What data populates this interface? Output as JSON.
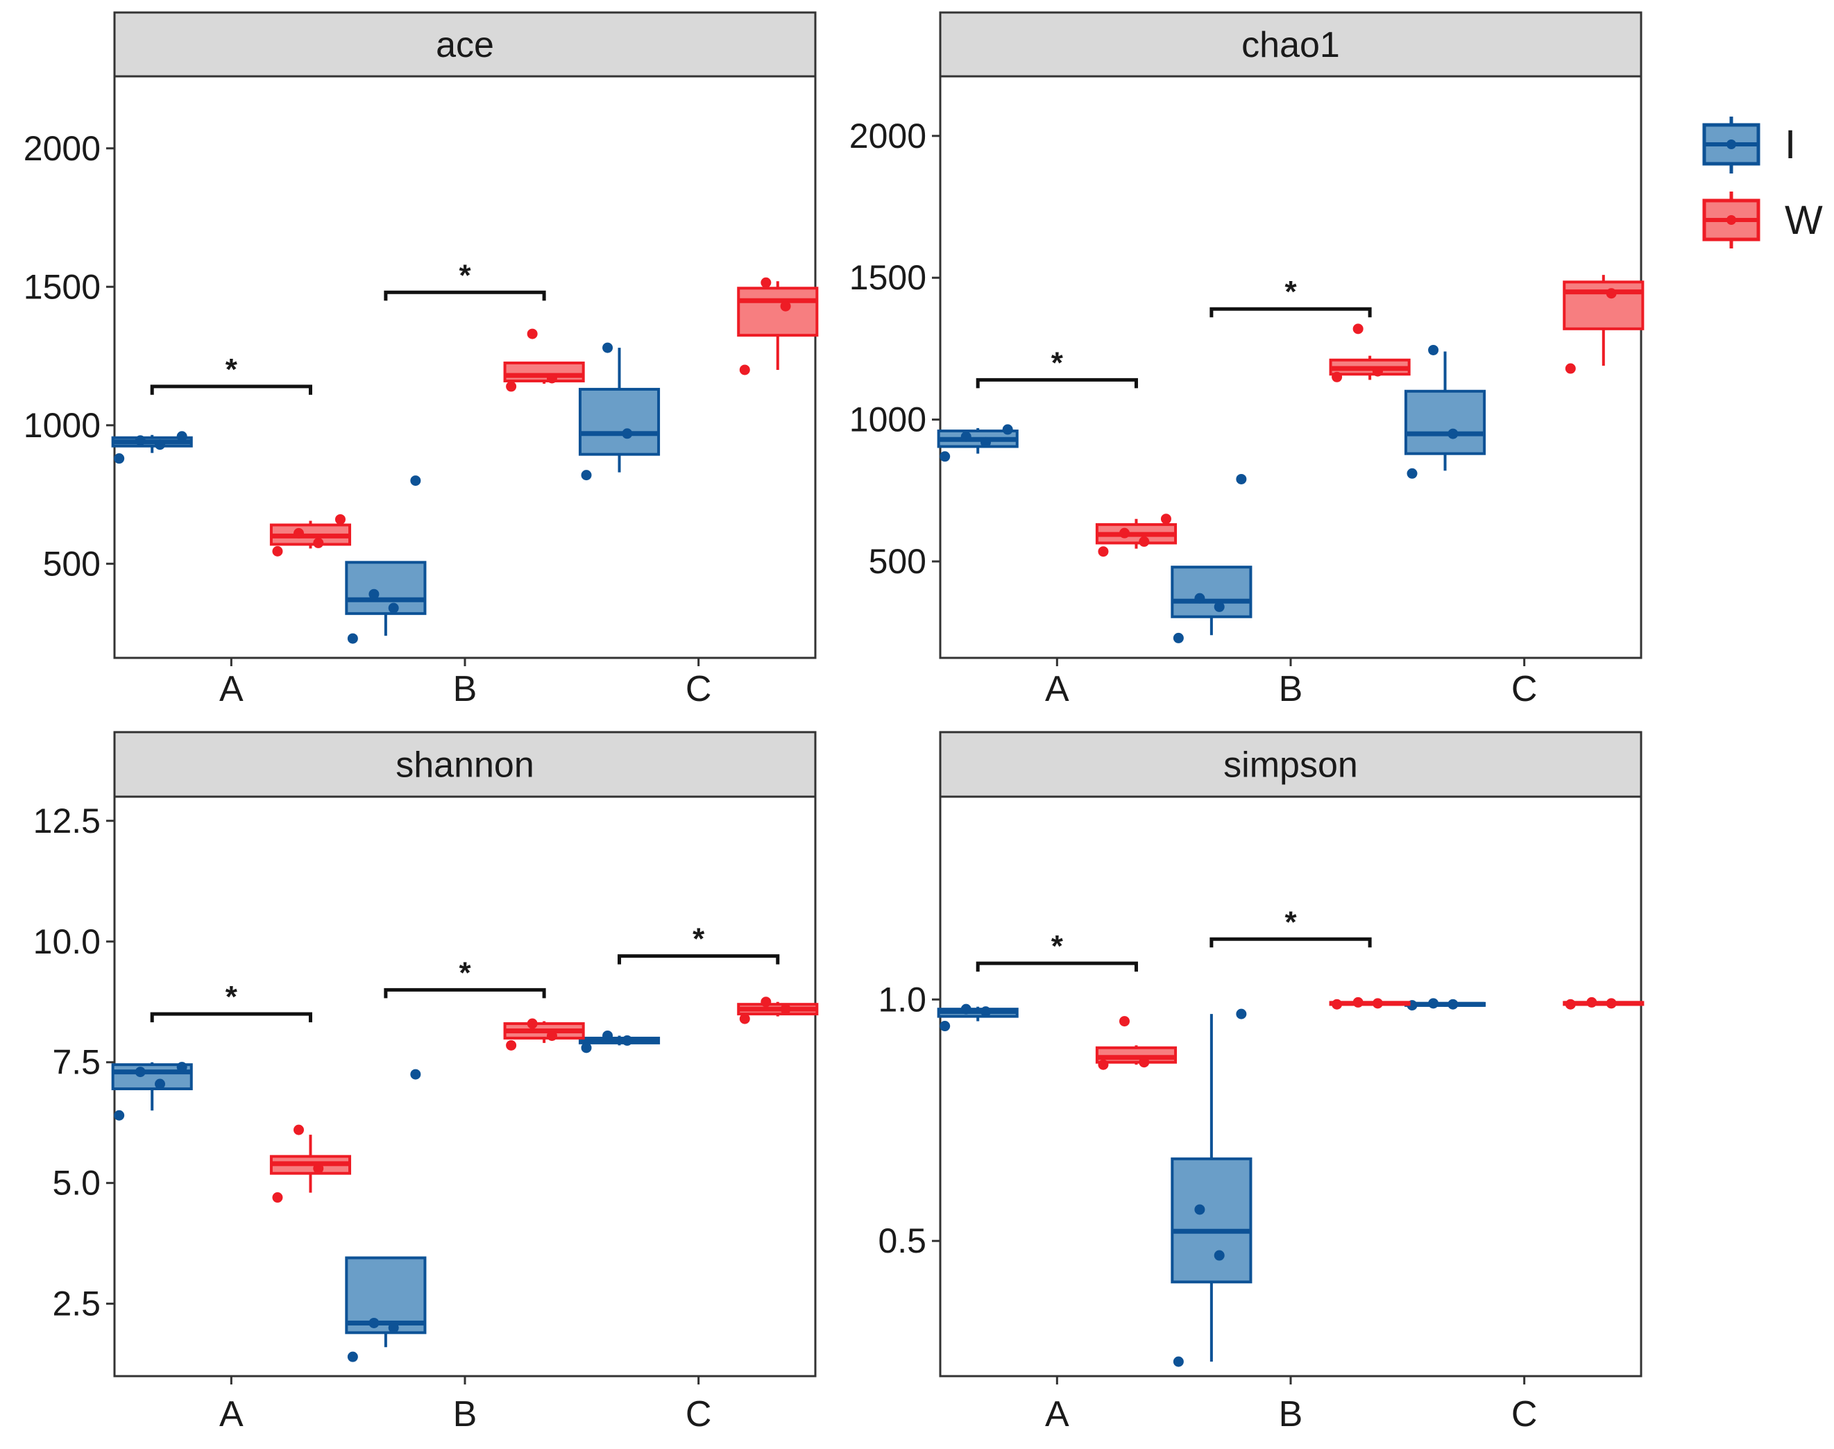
{
  "colors": {
    "I": "#0d5296",
    "W": "#ee1c25",
    "I_fill": "#6a9ec8",
    "W_fill": "#f77e80"
  },
  "legend": {
    "items": [
      {
        "key": "I",
        "label": "I"
      },
      {
        "key": "W",
        "label": "W"
      }
    ]
  },
  "chart_data": [
    {
      "type": "box",
      "title": "ace",
      "categories": [
        "A",
        "B",
        "C"
      ],
      "ylim": [
        160,
        2260
      ],
      "yticks": [
        500,
        1000,
        1500,
        2000
      ],
      "yticklabels": [
        "500",
        "1000",
        "1500",
        "2000"
      ],
      "series": [
        {
          "name": "I",
          "boxes": [
            {
              "min": 900,
              "q1": 925,
              "median": 940,
              "q3": 955,
              "max": 965,
              "points": [
                880,
                930,
                945,
                960
              ]
            },
            {
              "min": 240,
              "q1": 320,
              "median": 370,
              "q3": 505,
              "max": 505,
              "points": [
                230,
                340,
                390,
                800
              ]
            },
            {
              "min": 830,
              "q1": 895,
              "median": 970,
              "q3": 1130,
              "max": 1280,
              "points": [
                820,
                970,
                1280
              ]
            }
          ]
        },
        {
          "name": "W",
          "boxes": [
            {
              "min": 555,
              "q1": 570,
              "median": 600,
              "q3": 640,
              "max": 655,
              "points": [
                545,
                575,
                610,
                660
              ]
            },
            {
              "min": 1150,
              "q1": 1160,
              "median": 1180,
              "q3": 1225,
              "max": 1225,
              "points": [
                1140,
                1170,
                1330
              ]
            },
            {
              "min": 1200,
              "q1": 1325,
              "median": 1450,
              "q3": 1495,
              "max": 1520,
              "points": [
                1200,
                1430,
                1515
              ]
            }
          ]
        }
      ],
      "significance": [
        {
          "category": "A",
          "y": 1140,
          "label": "*"
        },
        {
          "category": "B",
          "y": 1480,
          "label": "*"
        }
      ]
    },
    {
      "type": "box",
      "title": "chao1",
      "categories": [
        "A",
        "B",
        "C"
      ],
      "ylim": [
        160,
        2210
      ],
      "yticks": [
        500,
        1000,
        1500,
        2000
      ],
      "yticklabels": [
        "500",
        "1000",
        "1500",
        "2000"
      ],
      "series": [
        {
          "name": "I",
          "boxes": [
            {
              "min": 880,
              "q1": 905,
              "median": 930,
              "q3": 960,
              "max": 970,
              "points": [
                870,
                920,
                940,
                965
              ]
            },
            {
              "min": 240,
              "q1": 305,
              "median": 360,
              "q3": 480,
              "max": 480,
              "points": [
                230,
                340,
                370,
                790
              ]
            },
            {
              "min": 820,
              "q1": 880,
              "median": 950,
              "q3": 1100,
              "max": 1240,
              "points": [
                810,
                950,
                1245
              ]
            }
          ]
        },
        {
          "name": "W",
          "boxes": [
            {
              "min": 545,
              "q1": 565,
              "median": 595,
              "q3": 630,
              "max": 650,
              "points": [
                535,
                570,
                600,
                650
              ]
            },
            {
              "min": 1140,
              "q1": 1160,
              "median": 1180,
              "q3": 1210,
              "max": 1225,
              "points": [
                1150,
                1170,
                1320
              ]
            },
            {
              "min": 1190,
              "q1": 1320,
              "median": 1450,
              "q3": 1485,
              "max": 1510,
              "points": [
                1180,
                1445
              ]
            }
          ]
        }
      ],
      "significance": [
        {
          "category": "A",
          "y": 1140,
          "label": "*"
        },
        {
          "category": "B",
          "y": 1390,
          "label": "*"
        }
      ]
    },
    {
      "type": "box",
      "title": "shannon",
      "categories": [
        "A",
        "B",
        "C"
      ],
      "ylim": [
        1.0,
        13.0
      ],
      "yticks": [
        2.5,
        5.0,
        7.5,
        10.0,
        12.5
      ],
      "yticklabels": [
        "2.5",
        "5.0",
        "7.5",
        "10.0",
        "12.5"
      ],
      "series": [
        {
          "name": "I",
          "boxes": [
            {
              "min": 6.5,
              "q1": 6.95,
              "median": 7.3,
              "q3": 7.45,
              "max": 7.5,
              "points": [
                6.4,
                7.05,
                7.3,
                7.4
              ]
            },
            {
              "min": 1.6,
              "q1": 1.9,
              "median": 2.1,
              "q3": 3.45,
              "max": 3.45,
              "points": [
                1.4,
                2.0,
                2.1,
                7.25
              ]
            },
            {
              "min": 7.85,
              "q1": 7.9,
              "median": 7.95,
              "q3": 8.0,
              "max": 8.05,
              "points": [
                7.8,
                7.95,
                8.05
              ]
            }
          ]
        },
        {
          "name": "W",
          "boxes": [
            {
              "min": 4.8,
              "q1": 5.2,
              "median": 5.4,
              "q3": 5.55,
              "max": 6.0,
              "points": [
                4.7,
                5.3,
                6.1
              ]
            },
            {
              "min": 7.9,
              "q1": 8.0,
              "median": 8.15,
              "q3": 8.3,
              "max": 8.35,
              "points": [
                7.85,
                8.05,
                8.3
              ]
            },
            {
              "min": 8.45,
              "q1": 8.5,
              "median": 8.6,
              "q3": 8.7,
              "max": 8.75,
              "points": [
                8.4,
                8.6,
                8.75
              ]
            }
          ]
        }
      ],
      "significance": [
        {
          "category": "A",
          "y": 8.5,
          "label": "*"
        },
        {
          "category": "B",
          "y": 9.0,
          "label": "*"
        },
        {
          "category": "C",
          "y": 9.7,
          "label": "*"
        }
      ]
    },
    {
      "type": "box",
      "title": "simpson",
      "categories": [
        "A",
        "B",
        "C"
      ],
      "ylim": [
        0.22,
        1.42
      ],
      "yticks": [
        0.5,
        1.0
      ],
      "yticklabels": [
        "0.5",
        "1.0"
      ],
      "series": [
        {
          "name": "I",
          "boxes": [
            {
              "min": 0.955,
              "q1": 0.965,
              "median": 0.975,
              "q3": 0.98,
              "max": 0.985,
              "points": [
                0.945,
                0.975,
                0.98
              ]
            },
            {
              "min": 0.25,
              "q1": 0.415,
              "median": 0.52,
              "q3": 0.67,
              "max": 0.97,
              "points": [
                0.25,
                0.47,
                0.565,
                0.97
              ]
            },
            {
              "min": 0.985,
              "q1": 0.988,
              "median": 0.99,
              "q3": 0.992,
              "max": 0.994,
              "points": [
                0.988,
                0.99,
                0.992
              ]
            }
          ]
        },
        {
          "name": "W",
          "boxes": [
            {
              "min": 0.865,
              "q1": 0.87,
              "median": 0.88,
              "q3": 0.9,
              "max": 0.905,
              "points": [
                0.865,
                0.87,
                0.955
              ]
            },
            {
              "min": 0.988,
              "q1": 0.99,
              "median": 0.992,
              "q3": 0.994,
              "max": 0.995,
              "points": [
                0.99,
                0.992,
                0.994
              ]
            },
            {
              "min": 0.988,
              "q1": 0.99,
              "median": 0.992,
              "q3": 0.994,
              "max": 0.995,
              "points": [
                0.99,
                0.992,
                0.994
              ]
            }
          ]
        }
      ],
      "significance": [
        {
          "category": "A",
          "y": 1.075,
          "label": "*"
        },
        {
          "category": "B",
          "y": 1.125,
          "label": "*"
        }
      ]
    }
  ]
}
